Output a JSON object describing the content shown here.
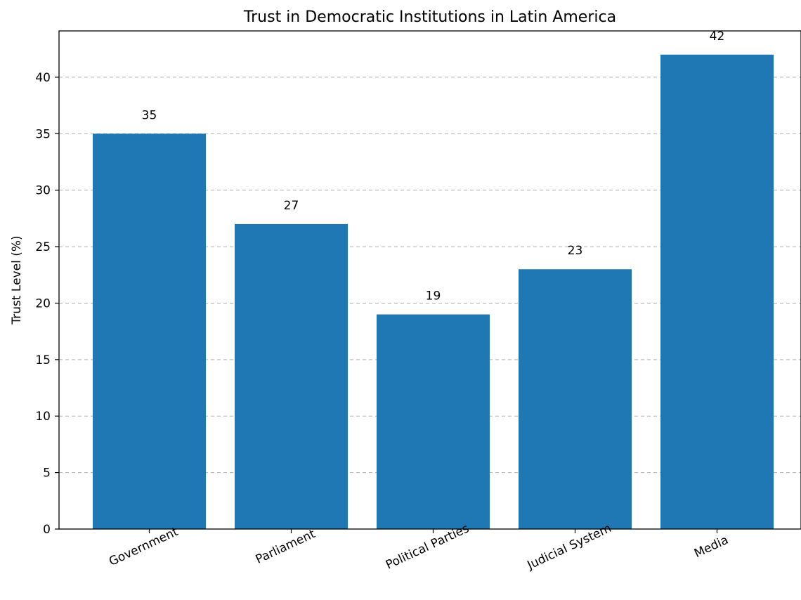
{
  "chart_data": {
    "type": "bar",
    "title": "Trust in Democratic Institutions in Latin America",
    "xlabel": "",
    "ylabel": "Trust Level (%)",
    "categories": [
      "Government",
      "Parliament",
      "Political Parties",
      "Judicial System",
      "Media"
    ],
    "values": [
      35,
      27,
      19,
      23,
      42
    ],
    "data_labels": [
      "35",
      "27",
      "19",
      "23",
      "42"
    ],
    "ylim": [
      0,
      44.1
    ],
    "yticks": [
      0,
      5,
      10,
      15,
      20,
      25,
      30,
      35,
      40
    ],
    "ytick_labels": [
      "0",
      "5",
      "10",
      "15",
      "20",
      "25",
      "30",
      "35",
      "40"
    ],
    "grid": "y, dashed",
    "legend": "none",
    "bar_color": "#1f77b4"
  }
}
